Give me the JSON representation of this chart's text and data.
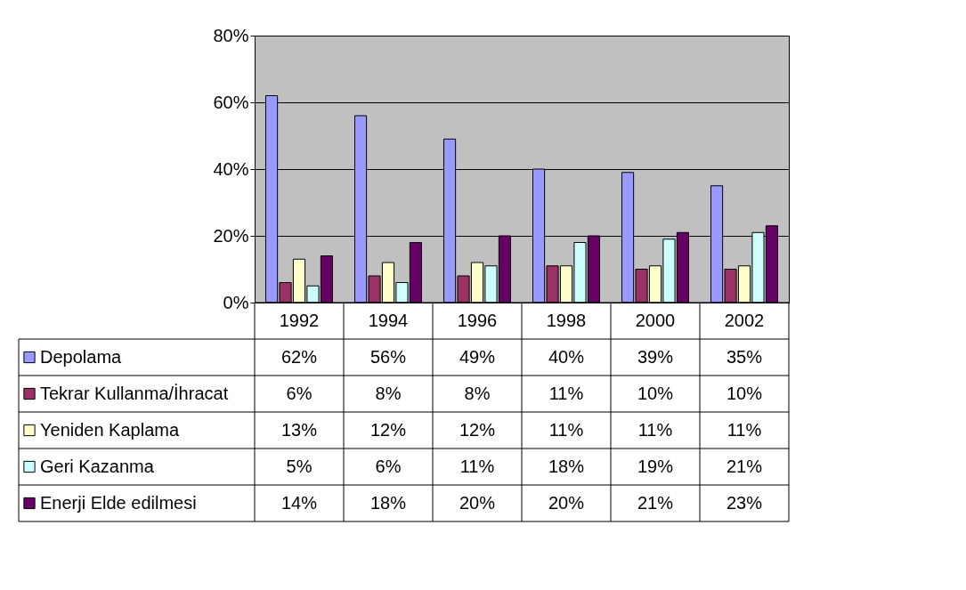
{
  "chart_data": {
    "type": "bar",
    "categories": [
      "1992",
      "1994",
      "1996",
      "1998",
      "2000",
      "2002"
    ],
    "series": [
      {
        "name": "Depolama",
        "color": "#9999ff",
        "values": [
          62,
          56,
          49,
          40,
          39,
          35
        ],
        "value_labels": [
          "62%",
          "56%",
          "49%",
          "40%",
          "39%",
          "35%"
        ]
      },
      {
        "name": "Tekrar Kullanma/İhracat",
        "color": "#993366",
        "values": [
          6,
          8,
          8,
          11,
          10,
          10
        ],
        "value_labels": [
          "6%",
          "8%",
          "8%",
          "11%",
          "10%",
          "10%"
        ]
      },
      {
        "name": "Yeniden Kaplama",
        "color": "#ffffcc",
        "values": [
          13,
          12,
          12,
          11,
          11,
          11
        ],
        "value_labels": [
          "13%",
          "12%",
          "12%",
          "11%",
          "11%",
          "11%"
        ]
      },
      {
        "name": "Geri Kazanma",
        "color": "#ccffff",
        "values": [
          5,
          6,
          11,
          18,
          19,
          21
        ],
        "value_labels": [
          "5%",
          "6%",
          "11%",
          "18%",
          "19%",
          "21%"
        ]
      },
      {
        "name": "Enerji Elde edilmesi",
        "color": "#660066",
        "values": [
          14,
          18,
          20,
          20,
          21,
          23
        ],
        "value_labels": [
          "14%",
          "18%",
          "20%",
          "20%",
          "21%",
          "23%"
        ]
      }
    ],
    "ylim": [
      0,
      80
    ],
    "yticks": [
      {
        "value": 0,
        "label": "0%"
      },
      {
        "value": 20,
        "label": "20%"
      },
      {
        "value": 40,
        "label": "40%"
      },
      {
        "value": 60,
        "label": "60%"
      },
      {
        "value": 80,
        "label": "80%"
      }
    ],
    "grid": "y",
    "legend": "bottom"
  }
}
